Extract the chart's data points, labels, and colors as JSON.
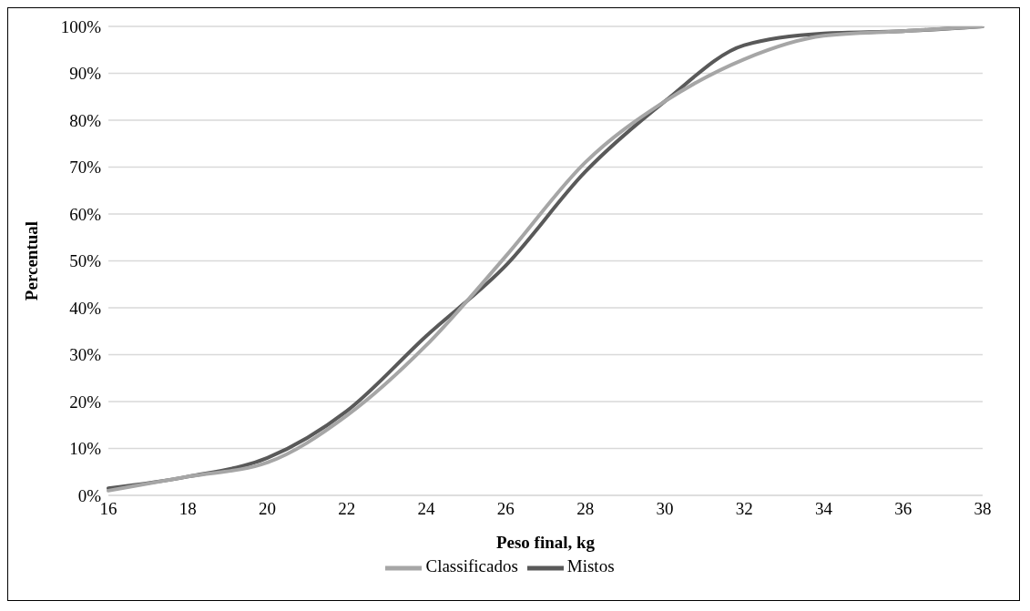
{
  "chart_data": {
    "type": "line",
    "xlabel": "Peso final, kg",
    "ylabel": "Percentual",
    "categories": [
      "16",
      "18",
      "20",
      "22",
      "24",
      "26",
      "28",
      "30",
      "32",
      "34",
      "36",
      "38"
    ],
    "series": [
      {
        "name": "Mistos",
        "color": "#595959",
        "values": [
          1.5,
          4,
          8,
          18,
          34,
          49,
          69,
          84,
          96,
          98.5,
          99,
          100
        ]
      },
      {
        "name": "Classificados",
        "color": "#a6a6a6",
        "values": [
          1,
          4,
          7,
          17,
          32,
          51,
          71,
          84,
          93,
          98,
          99,
          100
        ]
      }
    ],
    "ylim": [
      0,
      100
    ],
    "yticks": [
      {
        "value": 0,
        "label": "0%"
      },
      {
        "value": 10,
        "label": "10%"
      },
      {
        "value": 20,
        "label": "20%"
      },
      {
        "value": 30,
        "label": "30%"
      },
      {
        "value": 40,
        "label": "40%"
      },
      {
        "value": 50,
        "label": "50%"
      },
      {
        "value": 60,
        "label": "60%"
      },
      {
        "value": 70,
        "label": "70%"
      },
      {
        "value": 80,
        "label": "80%"
      },
      {
        "value": 90,
        "label": "90%"
      },
      {
        "value": 100,
        "label": "100%"
      }
    ],
    "grid": "y",
    "legend": "bottom",
    "marker": "none",
    "line_style": "solid"
  }
}
